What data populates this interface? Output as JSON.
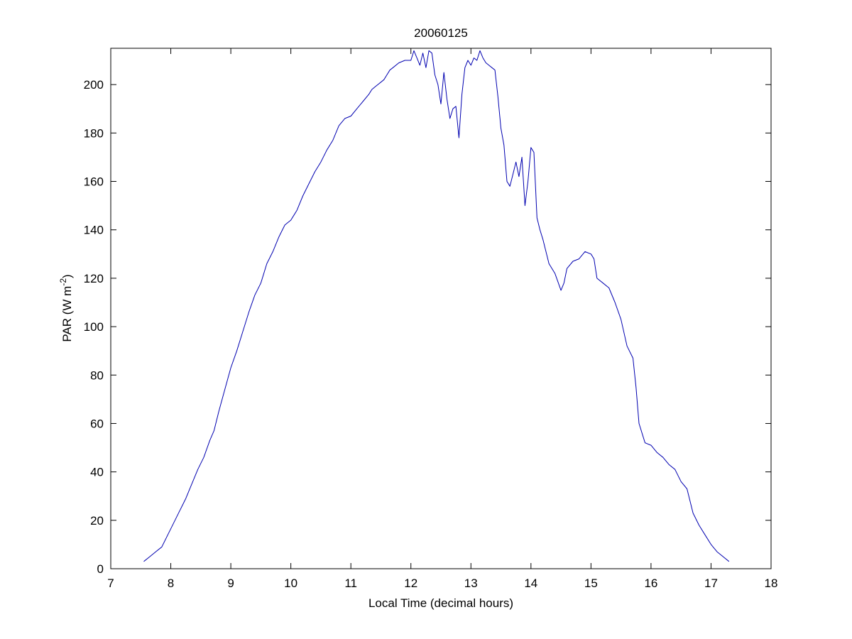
{
  "chart_data": {
    "type": "line",
    "title": "20060125",
    "xlabel": "Local Time (decimal hours)",
    "ylabel_main": "PAR (W m",
    "ylabel_sup": "-2",
    "ylabel_tail": ")",
    "xlim": [
      7,
      18
    ],
    "ylim": [
      0,
      215
    ],
    "xticks": [
      7,
      8,
      9,
      10,
      11,
      12,
      13,
      14,
      15,
      16,
      17,
      18
    ],
    "yticks": [
      0,
      20,
      40,
      60,
      80,
      100,
      120,
      140,
      160,
      180,
      200
    ],
    "grid": false,
    "line_color": "#0000b0",
    "series": [
      {
        "x": [
          7.55,
          7.65,
          7.75,
          7.85,
          7.95,
          8.05,
          8.15,
          8.25,
          8.35,
          8.45,
          8.55,
          8.65,
          8.72,
          8.8,
          8.9,
          9.0,
          9.1,
          9.2,
          9.3,
          9.4,
          9.5,
          9.6,
          9.7,
          9.8,
          9.9,
          10.0,
          10.05,
          10.1,
          10.2,
          10.3,
          10.4,
          10.5,
          10.6,
          10.7,
          10.8,
          10.9,
          11.0,
          11.1,
          11.2,
          11.3,
          11.35,
          11.4,
          11.45,
          11.5,
          11.55,
          11.6,
          11.65,
          11.7,
          11.8,
          11.9,
          12.0,
          12.05,
          12.1,
          12.15,
          12.2,
          12.25,
          12.3,
          12.35,
          12.4,
          12.45,
          12.5,
          12.55,
          12.6,
          12.65,
          12.7,
          12.75,
          12.8,
          12.85,
          12.9,
          12.95,
          13.0,
          13.05,
          13.1,
          13.15,
          13.2,
          13.25,
          13.3,
          13.35,
          13.4,
          13.45,
          13.5,
          13.55,
          13.6,
          13.65,
          13.7,
          13.75,
          13.8,
          13.85,
          13.9,
          13.95,
          14.0,
          14.05,
          14.1,
          14.15,
          14.2,
          14.3,
          14.4,
          14.5,
          14.55,
          14.6,
          14.7,
          14.8,
          14.9,
          15.0,
          15.05,
          15.1,
          15.2,
          15.3,
          15.4,
          15.5,
          15.6,
          15.7,
          15.75,
          15.8,
          15.9,
          16.0,
          16.1,
          16.2,
          16.3,
          16.4,
          16.5,
          16.6,
          16.7,
          16.8,
          16.9,
          17.0,
          17.1,
          17.2,
          17.3
        ],
        "y": [
          3,
          5,
          7,
          9,
          14,
          19,
          24,
          29,
          35,
          41,
          46,
          53,
          57,
          65,
          74,
          83,
          90,
          98,
          106,
          113,
          118,
          126,
          131,
          137,
          142,
          144,
          146,
          148,
          154,
          159,
          164,
          168,
          173,
          177,
          183,
          186,
          187,
          190,
          193,
          196,
          198,
          199,
          200,
          201,
          202,
          204,
          206,
          207,
          209,
          210,
          210,
          214,
          211,
          208,
          213,
          207,
          214,
          213,
          204,
          200,
          192,
          205,
          194,
          186,
          190,
          191,
          178,
          196,
          207,
          210,
          208,
          211,
          210,
          214,
          211,
          209,
          208,
          207,
          206,
          195,
          182,
          175,
          160,
          158,
          163,
          168,
          162,
          170,
          150,
          160,
          174,
          172,
          145,
          140,
          136,
          126,
          122,
          115,
          118,
          124,
          127,
          128,
          131,
          130,
          128,
          120,
          118,
          116,
          110,
          103,
          92,
          87,
          75,
          60,
          52,
          51,
          48,
          46,
          43,
          41,
          36,
          33,
          23,
          18,
          14,
          10,
          7,
          5,
          3
        ]
      }
    ]
  }
}
